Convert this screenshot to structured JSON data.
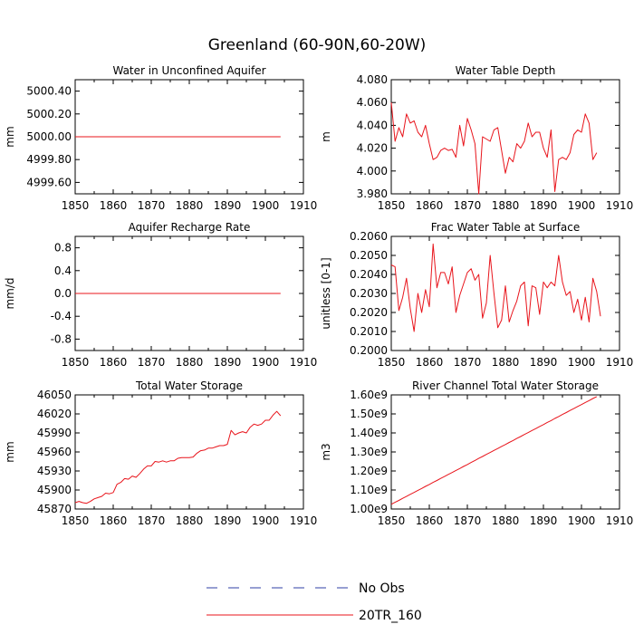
{
  "title": "Greenland (60-90N,60-20W)",
  "colors": {
    "model": "#e8141b",
    "obs": "#2f3fa6",
    "axis": "#000000"
  },
  "legend": [
    {
      "label": "No Obs",
      "style": "dashed",
      "color": "#2f3fa6"
    },
    {
      "label": "20TR_160",
      "style": "solid",
      "color": "#e8141b"
    }
  ],
  "chart_data": [
    {
      "type": "line",
      "title": "Water in Unconfined Aquifer",
      "ylabel": "mm",
      "xlim": [
        1850,
        1910
      ],
      "xticks": [
        "1850",
        "1860",
        "1870",
        "1880",
        "1890",
        "1900",
        "1910"
      ],
      "ylim": [
        4999.5,
        5000.5
      ],
      "yticks": [
        {
          "v": 4999.6,
          "label": "4999.60"
        },
        {
          "v": 4999.8,
          "label": "4999.80"
        },
        {
          "v": 5000.0,
          "label": "5000.00"
        },
        {
          "v": 5000.2,
          "label": "5000.20"
        },
        {
          "v": 5000.4,
          "label": "5000.40"
        }
      ],
      "series": [
        {
          "name": "20TR_160",
          "x_start": 1850,
          "x_step": 1,
          "values": [
            5000,
            5000,
            5000,
            5000,
            5000,
            5000,
            5000,
            5000,
            5000,
            5000,
            5000,
            5000,
            5000,
            5000,
            5000,
            5000,
            5000,
            5000,
            5000,
            5000,
            5000,
            5000,
            5000,
            5000,
            5000,
            5000,
            5000,
            5000,
            5000,
            5000,
            5000,
            5000,
            5000,
            5000,
            5000,
            5000,
            5000,
            5000,
            5000,
            5000,
            5000,
            5000,
            5000,
            5000,
            5000,
            5000,
            5000,
            5000,
            5000,
            5000,
            5000,
            5000,
            5000,
            5000,
            5000
          ]
        }
      ]
    },
    {
      "type": "line",
      "title": "Water Table Depth",
      "ylabel": "m",
      "xlim": [
        1850,
        1910
      ],
      "xticks": [
        "1850",
        "1860",
        "1870",
        "1880",
        "1890",
        "1900",
        "1910"
      ],
      "ylim": [
        3.98,
        4.08
      ],
      "yticks": [
        {
          "v": 3.98,
          "label": "3.980"
        },
        {
          "v": 4.0,
          "label": "4.000"
        },
        {
          "v": 4.02,
          "label": "4.020"
        },
        {
          "v": 4.04,
          "label": "4.040"
        },
        {
          "v": 4.06,
          "label": "4.060"
        },
        {
          "v": 4.08,
          "label": "4.080"
        }
      ],
      "series": [
        {
          "name": "20TR_160",
          "x_start": 1850,
          "x_step": 1,
          "values": [
            4.06,
            4.026,
            4.038,
            4.03,
            4.05,
            4.042,
            4.044,
            4.034,
            4.03,
            4.04,
            4.024,
            4.01,
            4.012,
            4.018,
            4.02,
            4.018,
            4.019,
            4.012,
            4.04,
            4.022,
            4.046,
            4.036,
            4.024,
            3.98,
            4.03,
            4.028,
            4.026,
            4.036,
            4.038,
            4.018,
            3.998,
            4.012,
            4.008,
            4.024,
            4.02,
            4.026,
            4.042,
            4.03,
            4.034,
            4.034,
            4.02,
            4.012,
            4.036,
            3.982,
            4.01,
            4.012,
            4.01,
            4.016,
            4.032,
            4.036,
            4.034,
            4.05,
            4.042,
            4.01,
            4.016
          ]
        }
      ]
    },
    {
      "type": "line",
      "title": "Aquifer Recharge Rate",
      "ylabel": "mm/d",
      "xlim": [
        1850,
        1910
      ],
      "xticks": [
        "1850",
        "1860",
        "1870",
        "1880",
        "1890",
        "1900",
        "1910"
      ],
      "ylim": [
        -1.0,
        1.0
      ],
      "yticks": [
        {
          "v": -0.8,
          "label": "-0.8"
        },
        {
          "v": -0.4,
          "label": "-0.4"
        },
        {
          "v": 0.0,
          "label": "0.0"
        },
        {
          "v": 0.4,
          "label": "0.4"
        },
        {
          "v": 0.8,
          "label": "0.8"
        }
      ],
      "series": [
        {
          "name": "20TR_160",
          "x_start": 1850,
          "x_step": 1,
          "values": [
            0,
            0,
            0,
            0,
            0,
            0,
            0,
            0,
            0,
            0,
            0,
            0,
            0,
            0,
            0,
            0,
            0,
            0,
            0,
            0,
            0,
            0,
            0,
            0,
            0,
            0,
            0,
            0,
            0,
            0,
            0,
            0,
            0,
            0,
            0,
            0,
            0,
            0,
            0,
            0,
            0,
            0,
            0,
            0,
            0,
            0,
            0,
            0,
            0,
            0,
            0,
            0,
            0,
            0,
            0
          ]
        }
      ]
    },
    {
      "type": "line",
      "title": "Frac Water Table at Surface",
      "ylabel": "unitless [0-1]",
      "xlim": [
        1850,
        1910
      ],
      "xticks": [
        "1850",
        "1860",
        "1870",
        "1880",
        "1890",
        "1900",
        "1910"
      ],
      "ylim": [
        0.2,
        0.206
      ],
      "yticks": [
        {
          "v": 0.2,
          "label": "0.2000"
        },
        {
          "v": 0.201,
          "label": "0.2010"
        },
        {
          "v": 0.202,
          "label": "0.2020"
        },
        {
          "v": 0.203,
          "label": "0.2030"
        },
        {
          "v": 0.204,
          "label": "0.2040"
        },
        {
          "v": 0.205,
          "label": "0.2050"
        },
        {
          "v": 0.206,
          "label": "0.2060"
        }
      ],
      "series": [
        {
          "name": "20TR_160",
          "x_start": 1850,
          "x_step": 1,
          "values": [
            0.2045,
            0.2044,
            0.2021,
            0.2028,
            0.2038,
            0.2022,
            0.201,
            0.203,
            0.202,
            0.2032,
            0.2023,
            0.2056,
            0.2033,
            0.2041,
            0.2041,
            0.2035,
            0.2044,
            0.202,
            0.2029,
            0.2035,
            0.2041,
            0.2043,
            0.2037,
            0.204,
            0.2017,
            0.2025,
            0.205,
            0.203,
            0.2012,
            0.2016,
            0.2034,
            0.2015,
            0.2021,
            0.2026,
            0.2034,
            0.2036,
            0.2013,
            0.2034,
            0.2033,
            0.2019,
            0.2036,
            0.2033,
            0.2036,
            0.2034,
            0.205,
            0.2036,
            0.2029,
            0.2031,
            0.202,
            0.2027,
            0.2016,
            0.2028,
            0.2015,
            0.2038,
            0.2031,
            0.2018
          ]
        }
      ]
    },
    {
      "type": "line",
      "title": "Total Water Storage",
      "ylabel": "mm",
      "xlim": [
        1850,
        1910
      ],
      "xticks": [
        "1850",
        "1860",
        "1870",
        "1880",
        "1890",
        "1900",
        "1910"
      ],
      "ylim": [
        45870,
        46050
      ],
      "yticks": [
        {
          "v": 45870,
          "label": "45870"
        },
        {
          "v": 45900,
          "label": "45900"
        },
        {
          "v": 45930,
          "label": "45930"
        },
        {
          "v": 45960,
          "label": "45960"
        },
        {
          "v": 45990,
          "label": "45990"
        },
        {
          "v": 46020,
          "label": "46020"
        },
        {
          "v": 46050,
          "label": "46050"
        }
      ],
      "series": [
        {
          "name": "20TR_160",
          "x_start": 1850,
          "x_step": 1,
          "values": [
            45880,
            45882,
            45880,
            45879,
            45882,
            45886,
            45888,
            45890,
            45895,
            45894,
            45896,
            45909,
            45912,
            45918,
            45917,
            45922,
            45920,
            45926,
            45933,
            45938,
            45938,
            45945,
            45944,
            45946,
            45944,
            45946,
            45946,
            45950,
            45951,
            45951,
            45951,
            45952,
            45958,
            45962,
            45963,
            45966,
            45966,
            45968,
            45970,
            45970,
            45972,
            45994,
            45987,
            45990,
            45992,
            45990,
            45999,
            46004,
            46002,
            46004,
            46010,
            46010,
            46018,
            46024,
            46017
          ]
        }
      ]
    },
    {
      "type": "line",
      "title": "River Channel Total Water Storage",
      "ylabel": "m3",
      "xlim": [
        1850,
        1910
      ],
      "xticks": [
        "1850",
        "1860",
        "1870",
        "1880",
        "1890",
        "1900",
        "1910"
      ],
      "ylim": [
        1000000000.0,
        1600000000.0
      ],
      "yticks": [
        {
          "v": 1000000000.0,
          "label": "1.00e9"
        },
        {
          "v": 1100000000.0,
          "label": "1.10e9"
        },
        {
          "v": 1200000000.0,
          "label": "1.20e9"
        },
        {
          "v": 1300000000.0,
          "label": "1.30e9"
        },
        {
          "v": 1400000000.0,
          "label": "1.40e9"
        },
        {
          "v": 1500000000.0,
          "label": "1.50e9"
        },
        {
          "v": 1600000000.0,
          "label": "1.60e9"
        }
      ],
      "series": [
        {
          "name": "20TR_160",
          "x_start": 1850,
          "x_step": 1,
          "values": [
            1025000000.0,
            1035000000.0,
            1045000000.0,
            1056000000.0,
            1066000000.0,
            1077000000.0,
            1087000000.0,
            1098000000.0,
            1108000000.0,
            1119000000.0,
            1129000000.0,
            1140000000.0,
            1150000000.0,
            1161000000.0,
            1171000000.0,
            1182000000.0,
            1192000000.0,
            1203000000.0,
            1213000000.0,
            1224000000.0,
            1234000000.0,
            1245000000.0,
            1255000000.0,
            1266000000.0,
            1276000000.0,
            1287000000.0,
            1297000000.0,
            1308000000.0,
            1318000000.0,
            1329000000.0,
            1339000000.0,
            1350000000.0,
            1360000000.0,
            1371000000.0,
            1381000000.0,
            1392000000.0,
            1402000000.0,
            1413000000.0,
            1423000000.0,
            1434000000.0,
            1444000000.0,
            1455000000.0,
            1465000000.0,
            1476000000.0,
            1486000000.0,
            1497000000.0,
            1507000000.0,
            1518000000.0,
            1528000000.0,
            1539000000.0,
            1549000000.0,
            1560000000.0,
            1570000000.0,
            1581000000.0,
            1591000000.0
          ]
        }
      ]
    }
  ]
}
